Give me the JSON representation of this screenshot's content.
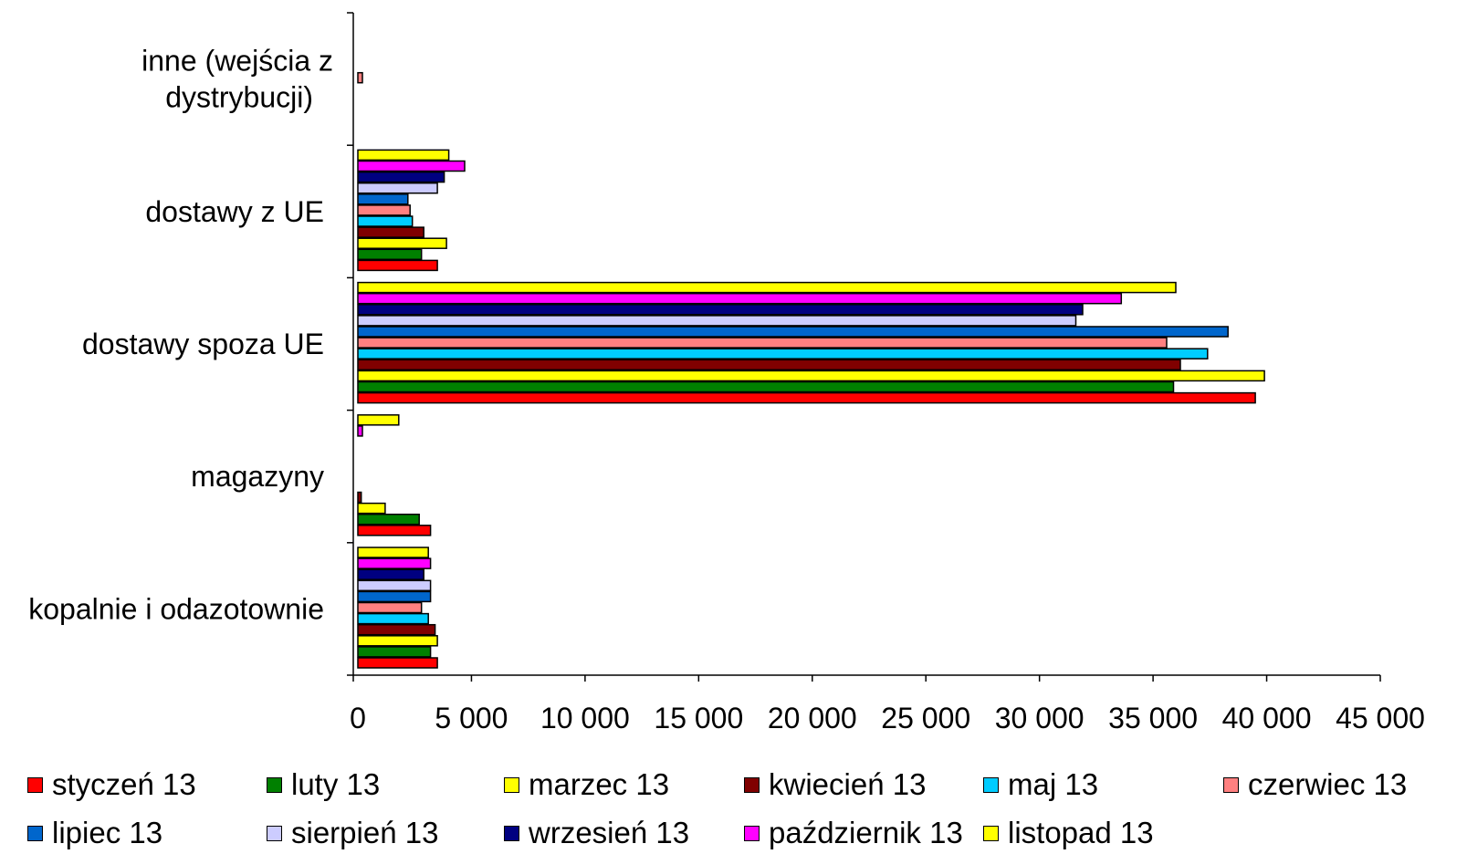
{
  "chart_data": {
    "type": "bar",
    "orientation": "horizontal",
    "categories": [
      "kopalnie i odazotownie",
      "magazyny",
      "dostawy spoza UE",
      "dostawy z UE",
      "inne (wejścia z dystrybucji)"
    ],
    "category_label_lines": [
      [
        "kopalnie i odazotownie"
      ],
      [
        "magazyny"
      ],
      [
        "dostawy spoza UE"
      ],
      [
        "dostawy z UE"
      ],
      [
        "inne (wejścia z",
        "dystrybucji)"
      ]
    ],
    "xlim": [
      0,
      45000
    ],
    "x_ticks": [
      0,
      5000,
      10000,
      15000,
      20000,
      25000,
      30000,
      35000,
      40000,
      45000
    ],
    "x_tick_labels": [
      "0",
      "5 000",
      "10 000",
      "15 000",
      "20 000",
      "25 000",
      "30 000",
      "35 000",
      "40 000",
      "45 000"
    ],
    "grid": false,
    "legend_position": "bottom",
    "series": [
      {
        "name": "styczeń 13",
        "color": "#FF0000",
        "values": [
          3500,
          3200,
          39500,
          3500,
          0
        ]
      },
      {
        "name": "luty 13",
        "color": "#008000",
        "values": [
          3200,
          2700,
          35900,
          2800,
          0
        ]
      },
      {
        "name": "marzec 13",
        "color": "#FFFF00",
        "values": [
          3500,
          1200,
          39900,
          3900,
          0
        ]
      },
      {
        "name": "kwiecień 13",
        "color": "#800000",
        "values": [
          3400,
          150,
          36200,
          2900,
          0
        ]
      },
      {
        "name": "maj 13",
        "color": "#00CCFF",
        "values": [
          3100,
          0,
          37400,
          2400,
          0
        ]
      },
      {
        "name": "czerwiec 13",
        "color": "#FF8080",
        "values": [
          2800,
          0,
          35600,
          2300,
          200
        ]
      },
      {
        "name": "lipiec 13",
        "color": "#0066CC",
        "values": [
          3200,
          0,
          38300,
          2200,
          0
        ]
      },
      {
        "name": "sierpień 13",
        "color": "#CCCCFF",
        "values": [
          3200,
          0,
          31600,
          3500,
          0
        ]
      },
      {
        "name": "wrzesień 13",
        "color": "#000080",
        "values": [
          2900,
          0,
          31900,
          3800,
          0
        ]
      },
      {
        "name": "październik 13",
        "color": "#FF00FF",
        "values": [
          3200,
          200,
          33600,
          4700,
          0
        ]
      },
      {
        "name": "listopad 13",
        "color": "#FFFF00",
        "values": [
          3100,
          1800,
          36000,
          4000,
          0
        ]
      }
    ]
  }
}
